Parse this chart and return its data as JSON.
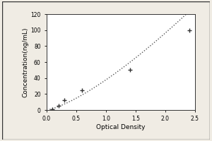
{
  "x_data": [
    0.1,
    0.2,
    0.3,
    0.6,
    1.4,
    2.4
  ],
  "y_data": [
    1,
    5,
    12,
    25,
    50,
    100
  ],
  "xlabel": "Optical Density",
  "ylabel": "Concentration(ng/mL)",
  "xlim": [
    0,
    2.5
  ],
  "ylim": [
    0,
    120
  ],
  "xticks": [
    0,
    0.5,
    1,
    1.5,
    2,
    2.5
  ],
  "yticks": [
    0,
    20,
    40,
    60,
    80,
    100,
    120
  ],
  "line_color": "#555555",
  "marker_color": "#333333",
  "bg_color": "#f0ece4",
  "plot_bg": "#ffffff",
  "xlabel_fontsize": 6.5,
  "ylabel_fontsize": 6.5,
  "tick_fontsize": 5.5
}
